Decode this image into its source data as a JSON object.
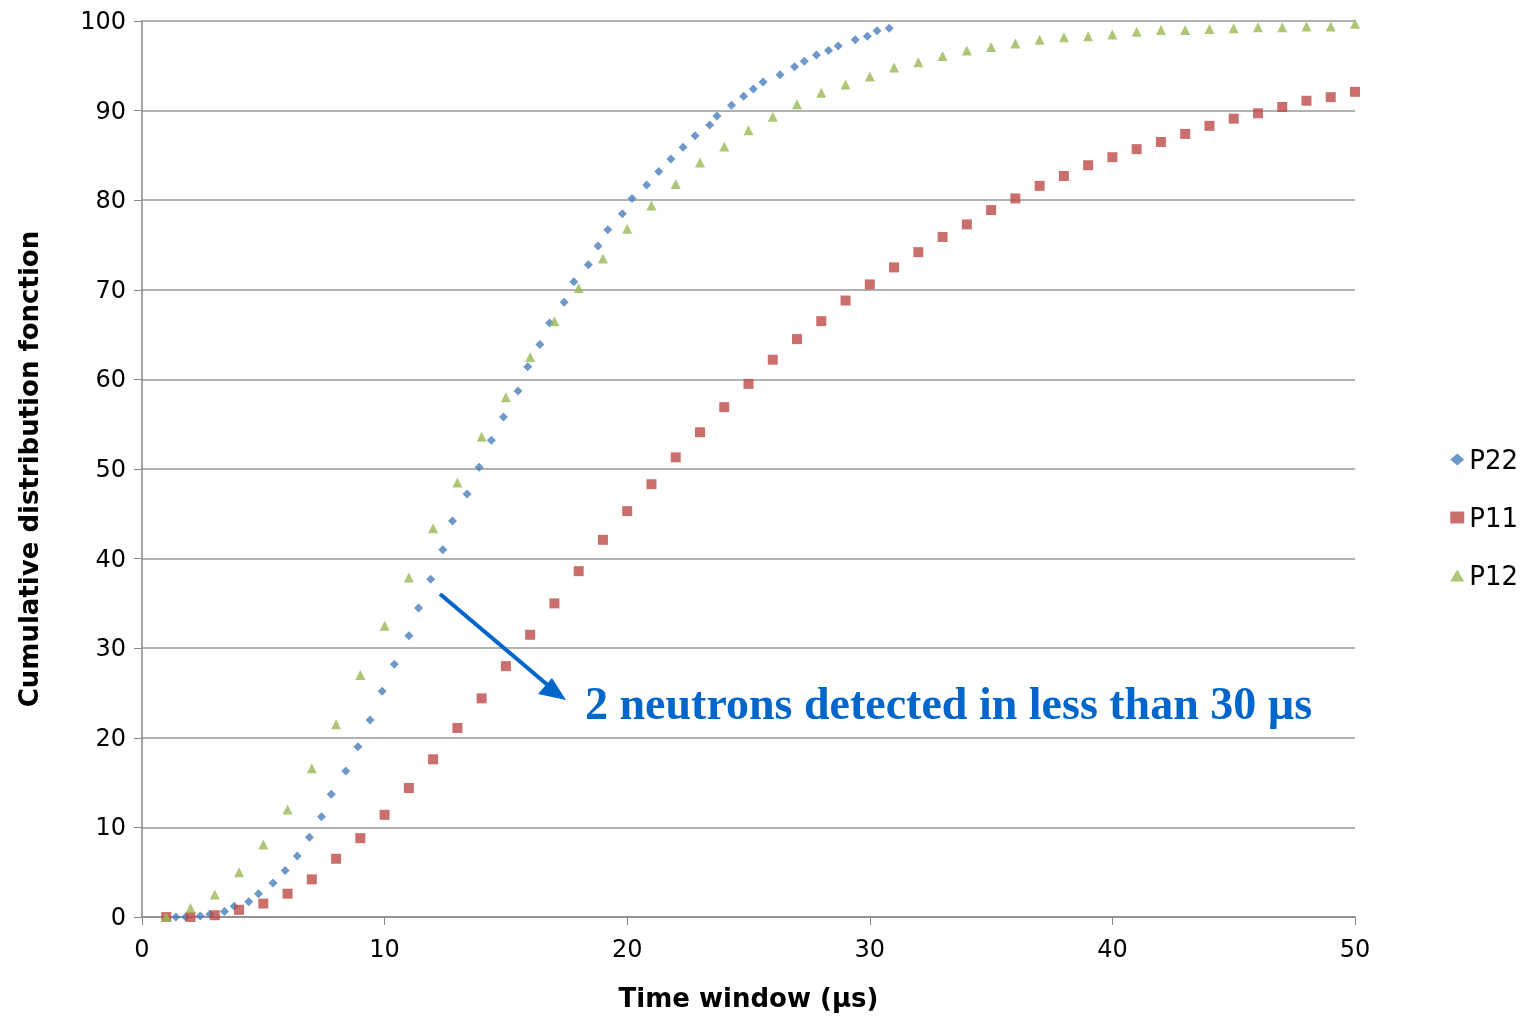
{
  "chart_data": {
    "type": "scatter",
    "xlabel": "Time window (µs)",
    "ylabel": "Cumulative distribution fonction",
    "xlim": [
      0,
      50
    ],
    "xticks": [
      0,
      10,
      20,
      30,
      40,
      50
    ],
    "ylim": [
      0,
      100
    ],
    "yticks": [
      0,
      10,
      20,
      30,
      40,
      50,
      60,
      70,
      80,
      90,
      100
    ],
    "grid": "y",
    "legend": "right",
    "annotations": [
      "2 neutrons detected in less than 30 µs"
    ],
    "series": [
      {
        "name": "P22",
        "color": "#4a7ebb",
        "marker": "diamond",
        "x": [
          1.4,
          1.8,
          2.4,
          2.8,
          3.4,
          3.8,
          4.4,
          4.8,
          5.4,
          5.9,
          6.4,
          6.9,
          7.4,
          7.8,
          8.4,
          8.9,
          9.4,
          9.9,
          10.4,
          11.0,
          11.4,
          11.9,
          12.4,
          12.8,
          13.4,
          13.9,
          14.4,
          14.9,
          15.5,
          15.9,
          16.4,
          16.8,
          17.4,
          17.8,
          18.4,
          18.8,
          19.2,
          19.8,
          20.2,
          20.8,
          21.3,
          21.8,
          22.3,
          22.8,
          23.4,
          23.7,
          24.3,
          24.8,
          25.2,
          25.6,
          26.3,
          26.9,
          27.3,
          27.8,
          28.3,
          28.7,
          29.4,
          29.9,
          30.3,
          30.8
        ],
        "values": [
          0,
          0,
          0.1,
          0.3,
          0.6,
          1.2,
          1.7,
          2.6,
          3.8,
          5.2,
          6.8,
          8.9,
          11.2,
          13.7,
          16.3,
          19.0,
          22.0,
          25.2,
          28.2,
          31.4,
          34.5,
          37.7,
          41.0,
          44.2,
          47.2,
          50.2,
          53.2,
          55.8,
          58.7,
          61.4,
          63.9,
          66.3,
          68.6,
          70.9,
          72.8,
          74.9,
          76.7,
          78.5,
          80.2,
          81.7,
          83.2,
          84.6,
          85.9,
          87.2,
          88.4,
          89.4,
          90.6,
          91.6,
          92.4,
          93.2,
          94.0,
          94.9,
          95.5,
          96.2,
          96.7,
          97.2,
          97.9,
          98.3,
          98.9,
          99.2
        ]
      },
      {
        "name": "P11",
        "color": "#be4b48",
        "marker": "square",
        "x": [
          1,
          2,
          3,
          4,
          5,
          6,
          7,
          8,
          9,
          10,
          11,
          12,
          13,
          14,
          15,
          16,
          17,
          18,
          19,
          20,
          21,
          22,
          23,
          24,
          25,
          26,
          27,
          28,
          29,
          30,
          31,
          32,
          33,
          34,
          35,
          36,
          37,
          38,
          39,
          40,
          41,
          42,
          43,
          44,
          45,
          46,
          47,
          48,
          49,
          50
        ],
        "values": [
          0,
          0,
          0.2,
          0.8,
          1.5,
          2.6,
          4.2,
          6.5,
          8.8,
          11.4,
          14.4,
          17.6,
          21.1,
          24.4,
          28.0,
          31.5,
          35.0,
          38.6,
          42.1,
          45.3,
          48.3,
          51.3,
          54.1,
          56.9,
          59.5,
          62.2,
          64.5,
          66.5,
          68.8,
          70.6,
          72.5,
          74.2,
          75.9,
          77.3,
          78.9,
          80.2,
          81.6,
          82.7,
          83.9,
          84.8,
          85.7,
          86.5,
          87.4,
          88.3,
          89.1,
          89.7,
          90.4,
          91.1,
          91.5,
          92.1
        ]
      },
      {
        "name": "P12",
        "color": "#98b954",
        "marker": "triangle",
        "x": [
          1,
          2,
          3,
          4,
          5,
          6,
          7,
          8,
          9,
          10,
          11,
          12,
          13,
          14,
          15,
          16,
          17,
          18,
          19,
          20,
          21,
          22,
          23,
          24,
          25,
          26,
          27,
          28,
          29,
          30,
          31,
          32,
          33,
          34,
          35,
          36,
          37,
          38,
          39,
          40,
          41,
          42,
          43,
          44,
          45,
          46,
          47,
          48,
          49,
          50
        ],
        "values": [
          0,
          1.0,
          2.5,
          5.0,
          8.1,
          12.0,
          16.6,
          21.5,
          27.0,
          32.5,
          37.9,
          43.4,
          48.5,
          53.6,
          58.0,
          62.5,
          66.5,
          70.2,
          73.5,
          76.8,
          79.4,
          81.8,
          84.2,
          86.0,
          87.8,
          89.3,
          90.7,
          92.0,
          92.9,
          93.8,
          94.8,
          95.4,
          96.1,
          96.7,
          97.1,
          97.5,
          97.9,
          98.2,
          98.3,
          98.5,
          98.8,
          99.0,
          99.0,
          99.1,
          99.2,
          99.3,
          99.3,
          99.4,
          99.4,
          99.7
        ]
      }
    ]
  }
}
